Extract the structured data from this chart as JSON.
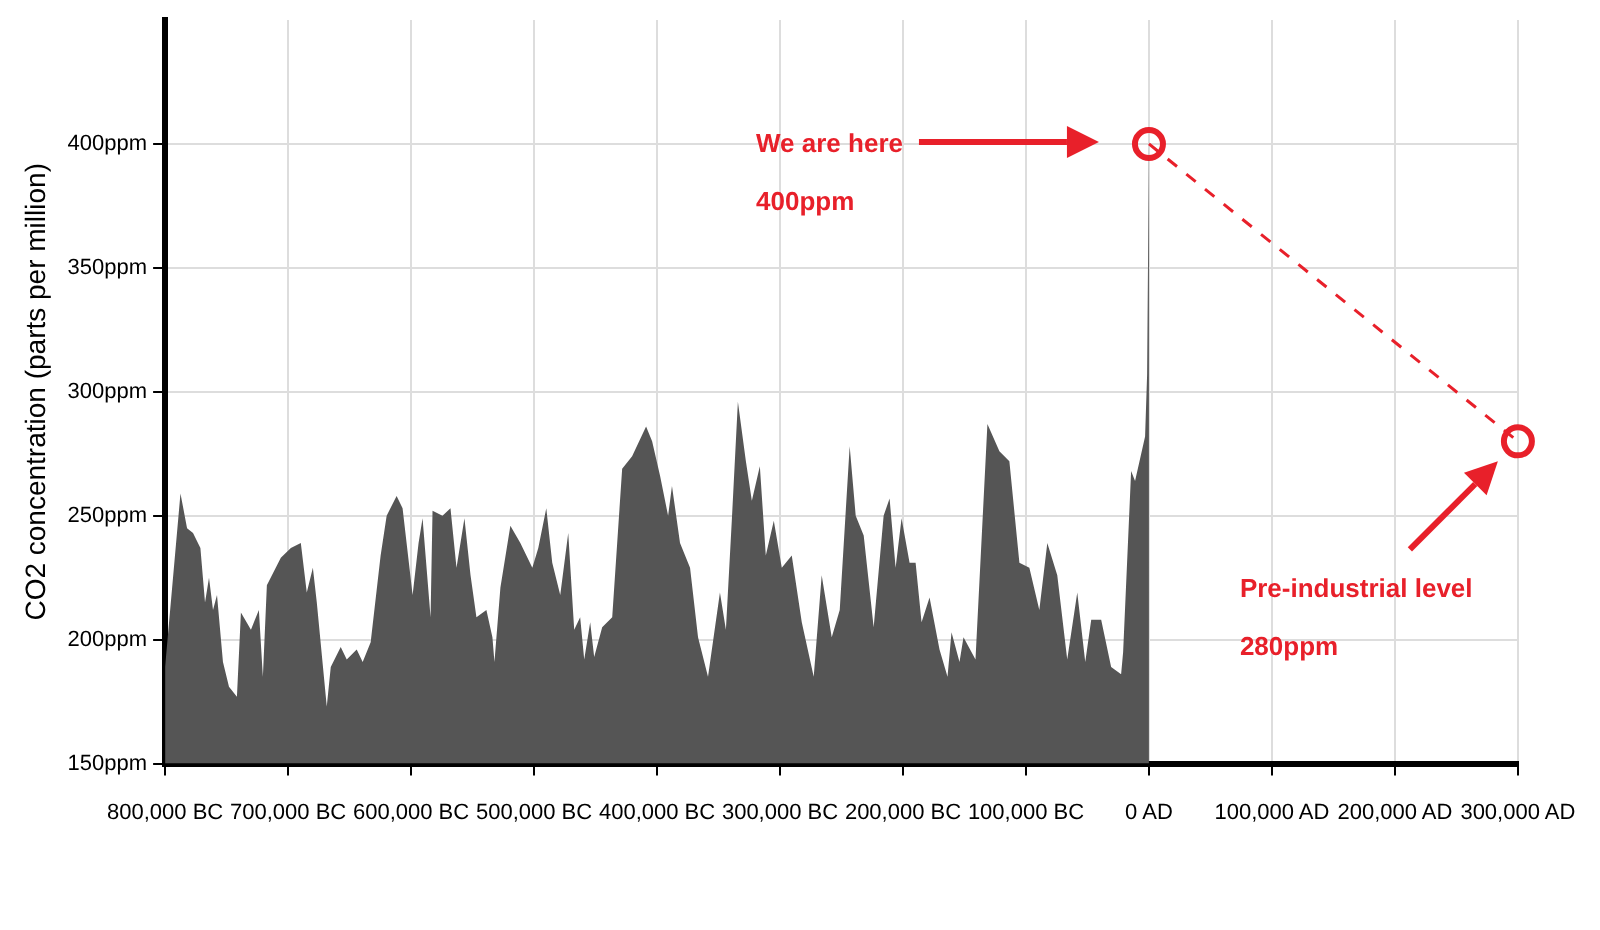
{
  "chart_data": {
    "type": "area",
    "ylabel": "CO2 concentration (parts per million)",
    "xlim": [
      -800000,
      300000
    ],
    "ylim": [
      150,
      450
    ],
    "xticks": [
      {
        "value": -800000,
        "label": "800,000 BC"
      },
      {
        "value": -700000,
        "label": "700,000 BC"
      },
      {
        "value": -600000,
        "label": "600,000 BC"
      },
      {
        "value": -500000,
        "label": "500,000 BC"
      },
      {
        "value": -400000,
        "label": "400,000 BC"
      },
      {
        "value": -300000,
        "label": "300,000 BC"
      },
      {
        "value": -200000,
        "label": "200,000 BC"
      },
      {
        "value": -100000,
        "label": "100,000 BC"
      },
      {
        "value": 0,
        "label": "0 AD"
      },
      {
        "value": 100000,
        "label": "100,000 AD"
      },
      {
        "value": 200000,
        "label": "200,000 AD"
      },
      {
        "value": 300000,
        "label": "300,000 AD"
      }
    ],
    "yticks": [
      {
        "value": 150,
        "label": "150ppm"
      },
      {
        "value": 200,
        "label": "200ppm"
      },
      {
        "value": 250,
        "label": "250ppm"
      },
      {
        "value": 300,
        "label": "300ppm"
      },
      {
        "value": 350,
        "label": "350ppm"
      },
      {
        "value": 400,
        "label": "400ppm"
      }
    ],
    "grid": true,
    "legend": false,
    "series": [
      {
        "color": "#555555",
        "x": [
          -800000,
          -787500,
          -782150,
          -777300,
          -771300,
          -767550,
          -764300,
          -761050,
          -757800,
          -752950,
          -748050,
          -741600,
          -738350,
          -730200,
          -723750,
          -720500,
          -717250,
          -705900,
          -697750,
          -689650,
          -684800,
          -679850,
          -676650,
          -668550,
          -665300,
          -657200,
          -652300,
          -644200,
          -639350,
          -632850,
          -624750,
          -619850,
          -611750,
          -606900,
          -598750,
          -593900,
          -590650,
          -584150,
          -582550,
          -574450,
          -567950,
          -563050,
          -556600,
          -551650,
          -546850,
          -538750,
          -533850,
          -532200,
          -527350,
          -519250,
          -511150,
          -501400,
          -496550,
          -490050,
          -485200,
          -478700,
          -472200,
          -467350,
          -462500,
          -459200,
          -454350,
          -451100,
          -444600,
          -436450,
          -428350,
          -420250,
          -408900,
          -404000,
          -397500,
          -391000,
          -387850,
          -381300,
          -373150,
          -366650,
          -358550,
          -348850,
          -344000,
          -339100,
          -334250,
          -327750,
          -322900,
          -316400,
          -311550,
          -305050,
          -298550,
          -290450,
          -282300,
          -272600,
          -266100,
          -257950,
          -251450,
          -243350,
          -238450,
          -231950,
          -223850,
          -215750,
          -210900,
          -206000,
          -201150,
          -194650,
          -189750,
          -184900,
          -178400,
          -170300,
          -163800,
          -160550,
          -154050,
          -150800,
          -141050,
          -131350,
          -121600,
          -113500,
          -105350,
          -97250,
          -89150,
          -82650,
          -74550,
          -66450,
          -58300,
          -51800,
          -46950,
          -38850,
          -30750,
          -22650,
          -21000,
          -14500,
          -11300,
          -3150,
          -1500,
          0
        ],
        "values": [
          189,
          259,
          245,
          243,
          237,
          215,
          225,
          212,
          218,
          191,
          181,
          177,
          211,
          204,
          212,
          185,
          222,
          233,
          237,
          239,
          219,
          229,
          215,
          173,
          189,
          197,
          192,
          196,
          191,
          199,
          234,
          250,
          258,
          253,
          218,
          239,
          249,
          209,
          252,
          250,
          253,
          229,
          249,
          226,
          209,
          212,
          201,
          191,
          221,
          246,
          239,
          229,
          237,
          253,
          231,
          218,
          243,
          204,
          209,
          192,
          207,
          193,
          205,
          209,
          269,
          274,
          286,
          280,
          266,
          250,
          262,
          239,
          229,
          201,
          185,
          219,
          204,
          249,
          296,
          272,
          256,
          270,
          234,
          248,
          229,
          234,
          207,
          185,
          226,
          201,
          212,
          278,
          250,
          242,
          205,
          250,
          257,
          229,
          249,
          231,
          231,
          207,
          217,
          196,
          185,
          203,
          191,
          201,
          192,
          287,
          276,
          272,
          231,
          229,
          212,
          239,
          226,
          192,
          219,
          191,
          208,
          208,
          189,
          186,
          195,
          268,
          264,
          282,
          307,
          400
        ]
      },
      {
        "type": "line",
        "color": "#e8202a",
        "x": [
          0,
          300000
        ],
        "values": [
          400,
          280
        ],
        "marker": "circle",
        "line_style": "dashed"
      }
    ],
    "annotations": [
      "We are here\n400ppm",
      "Pre-industrial level\n280ppm"
    ]
  }
}
